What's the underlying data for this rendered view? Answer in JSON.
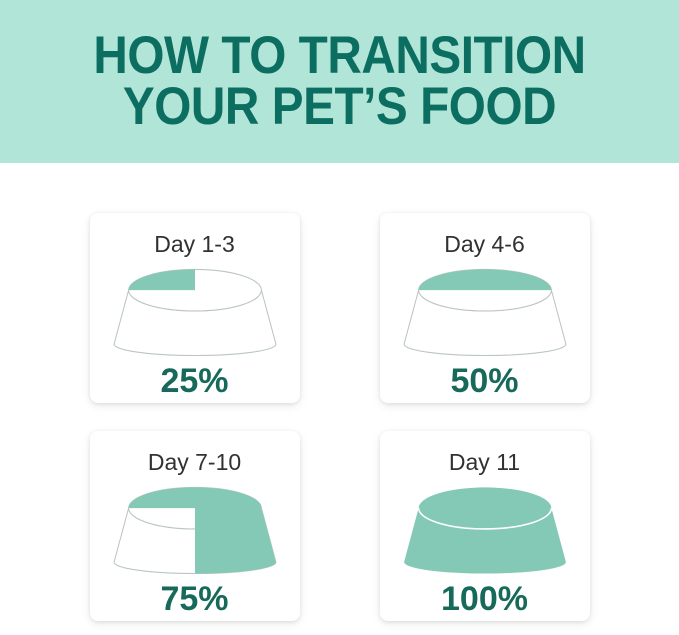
{
  "header": {
    "title_line1": "HOW TO TRANSITION",
    "title_line2": "YOUR PET’S FOOD"
  },
  "colors": {
    "header_bg": "#b1e5d8",
    "title": "#0c6e61",
    "bowl_fill": "#84c8b6",
    "bowl_outline": "#bac5c2",
    "percent_text": "#17695a",
    "day_text": "#313131",
    "card_bg": "#ffffff",
    "page_bg": "#ffffff"
  },
  "panels": [
    {
      "day_label": "Day 1-3",
      "percent": 25,
      "percent_label": "25%"
    },
    {
      "day_label": "Day 4-6",
      "percent": 50,
      "percent_label": "50%"
    },
    {
      "day_label": "Day 7-10",
      "percent": 75,
      "percent_label": "75%"
    },
    {
      "day_label": "Day 11",
      "percent": 100,
      "percent_label": "100%"
    }
  ],
  "chart_data": {
    "type": "pie",
    "title": "How to transition your pet's food",
    "categories": [
      "Day 1-3",
      "Day 4-6",
      "Day 7-10",
      "Day 11"
    ],
    "values": [
      25,
      50,
      75,
      100
    ],
    "value_unit": "percent new food in bowl",
    "legend_position": "none"
  }
}
